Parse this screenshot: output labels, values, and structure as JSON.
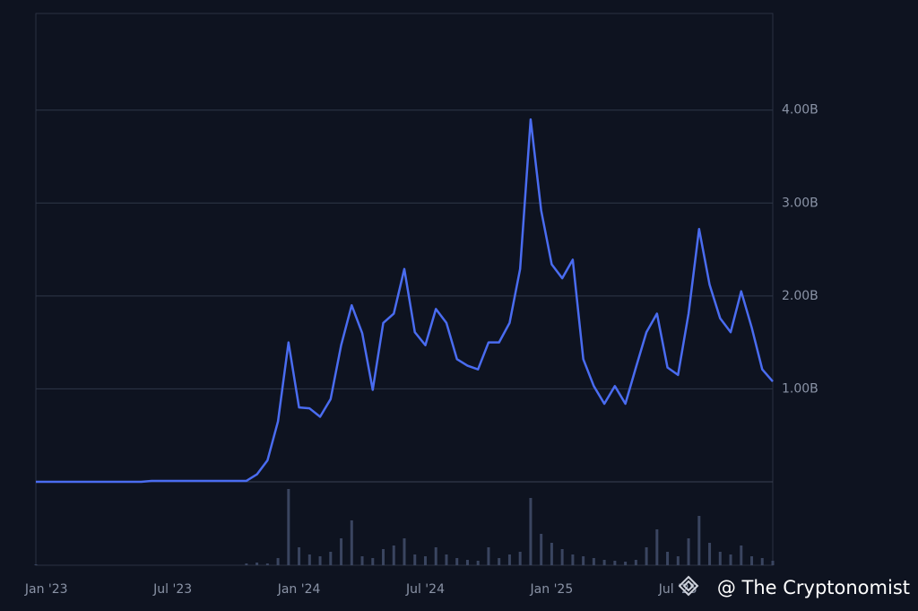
{
  "chart_data": {
    "type": "line",
    "categories": [
      null,
      "Jan '23",
      null,
      null,
      null,
      null,
      null,
      null,
      null,
      null,
      null,
      null,
      null,
      "Jul '23",
      null,
      null,
      null,
      null,
      null,
      null,
      null,
      null,
      null,
      null,
      null,
      "Jan '24",
      null,
      null,
      null,
      null,
      null,
      null,
      null,
      null,
      null,
      null,
      null,
      "Jul '24",
      null,
      null,
      null,
      null,
      null,
      null,
      null,
      null,
      null,
      null,
      null,
      "Jan '25",
      null,
      null,
      null,
      null,
      null,
      null,
      null,
      null,
      null,
      null,
      null,
      "Jul '25",
      null,
      null,
      null,
      null,
      null,
      null,
      null,
      null,
      null
    ],
    "series": [
      {
        "color": "#4a6cf0",
        "values": [
          0,
          0,
          0,
          0,
          0,
          0,
          0,
          0,
          0,
          0,
          0,
          0.01,
          0.01,
          0.01,
          0.01,
          0.01,
          0.01,
          0.01,
          0.01,
          0.01,
          0.01,
          0.08,
          0.23,
          0.65,
          1.5,
          0.8,
          0.79,
          0.7,
          0.89,
          1.47,
          1.9,
          1.6,
          0.99,
          1.71,
          1.81,
          2.29,
          1.61,
          1.47,
          1.86,
          1.71,
          1.32,
          1.25,
          1.21,
          1.5,
          1.5,
          1.71,
          2.29,
          3.9,
          2.92,
          2.34,
          2.19,
          2.39,
          1.32,
          1.03,
          0.84,
          1.03,
          0.84,
          1.23,
          1.61,
          1.81,
          1.23,
          1.15,
          1.81,
          2.72,
          2.12,
          1.76,
          1.61,
          2.05,
          1.66,
          1.21,
          1.08
        ]
      }
    ],
    "volume": [
      1,
      0,
      0,
      0,
      0,
      0,
      0,
      0,
      0,
      0,
      0,
      0,
      0,
      0,
      0,
      0,
      0,
      0,
      0,
      0,
      2,
      3,
      2,
      8,
      85,
      20,
      12,
      10,
      15,
      30,
      50,
      10,
      8,
      18,
      22,
      30,
      12,
      10,
      20,
      12,
      8,
      6,
      5,
      20,
      8,
      12,
      15,
      75,
      35,
      25,
      18,
      12,
      10,
      8,
      6,
      5,
      4,
      6,
      20,
      40,
      15,
      10,
      30,
      55,
      25,
      15,
      12,
      22,
      10,
      8,
      5
    ],
    "ylim": [
      0,
      5.04
    ],
    "yticks": [
      {
        "value": 1,
        "label": "1.00B"
      },
      {
        "value": 2,
        "label": "2.00B"
      },
      {
        "value": 3,
        "label": "3.00B"
      },
      {
        "value": 4,
        "label": "4.00B"
      }
    ],
    "grid": true,
    "watermark": "@ The Cryptonomist"
  }
}
